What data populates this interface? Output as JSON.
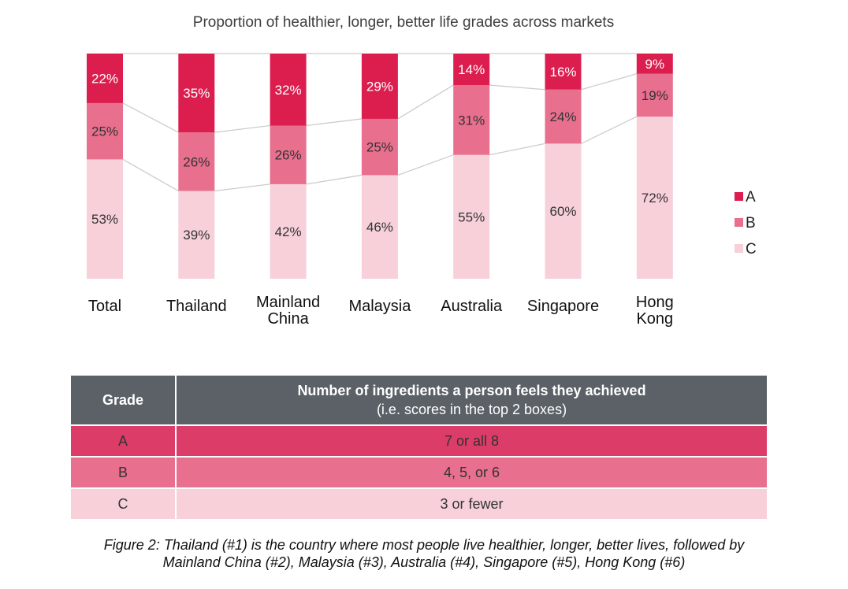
{
  "chart_data": {
    "type": "bar",
    "stacked": true,
    "title": "Proportion of healthier, longer, better life grades across markets",
    "categories": [
      "Total",
      "Thailand",
      "Mainland China",
      "Malaysia",
      "Australia",
      "Singapore",
      "Hong Kong"
    ],
    "series": [
      {
        "name": "C",
        "color": "#f7d0da",
        "values": [
          53,
          39,
          42,
          46,
          55,
          60,
          72
        ]
      },
      {
        "name": "B",
        "color": "#e86f8d",
        "values": [
          25,
          26,
          26,
          25,
          31,
          24,
          19
        ]
      },
      {
        "name": "A",
        "color": "#dc1e4f",
        "values": [
          22,
          35,
          32,
          29,
          14,
          16,
          9
        ]
      }
    ],
    "ylim": [
      0,
      100
    ],
    "grid": false,
    "legend": "right",
    "connector_lines": true
  },
  "table": {
    "header_grade": "Grade",
    "header_main": "Number of ingredients a person feels they achieved",
    "header_sub": "(i.e. scores in the top 2 boxes)",
    "rows": [
      {
        "grade": "A",
        "description": "7 or all 8"
      },
      {
        "grade": "B",
        "description": "4, 5, or 6"
      },
      {
        "grade": "C",
        "description": "3 or fewer"
      }
    ]
  },
  "caption": {
    "line1": "Figure 2: Thailand (#1) is the country where most people live healthier, longer, better lives, followed by",
    "line2": "Mainland China (#2), Malaysia (#3), Australia (#4), Singapore (#5), Hong Kong (#6)"
  }
}
